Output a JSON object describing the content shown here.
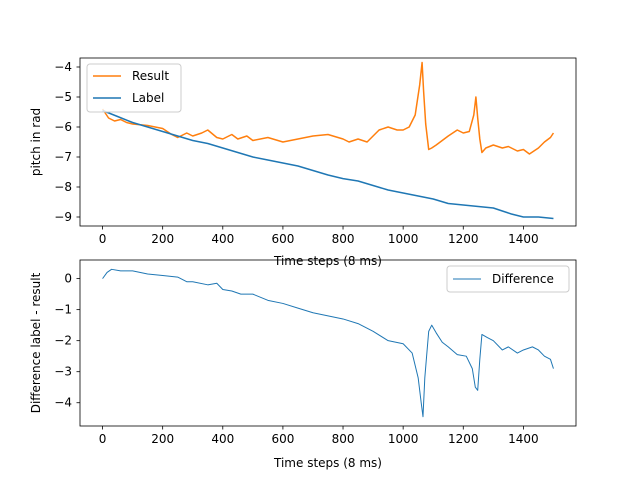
{
  "chart_data": [
    {
      "type": "line",
      "xlabel": "Time steps (8 ms)",
      "ylabel": "pitch in rad",
      "xlim": [
        -75,
        1575
      ],
      "ylim": [
        -9.3,
        -3.7
      ],
      "xticks": [
        "0",
        "200",
        "400",
        "600",
        "800",
        "1000",
        "1200",
        "1400"
      ],
      "xtick_values": [
        0,
        200,
        400,
        600,
        800,
        1000,
        1200,
        1400
      ],
      "yticks": [
        "−4",
        "−5",
        "−6",
        "−7",
        "−8",
        "−9"
      ],
      "ytick_values": [
        -4,
        -5,
        -6,
        -7,
        -8,
        -9
      ],
      "legend_position": "top-left",
      "grid": false,
      "series": [
        {
          "name": "Result",
          "color": "#ff7f0e",
          "x": [
            0,
            20,
            40,
            60,
            80,
            100,
            150,
            200,
            230,
            250,
            280,
            300,
            330,
            350,
            380,
            400,
            430,
            450,
            480,
            500,
            550,
            600,
            650,
            700,
            750,
            800,
            820,
            850,
            880,
            900,
            920,
            950,
            980,
            1000,
            1020,
            1040,
            1055,
            1063,
            1068,
            1075,
            1085,
            1095,
            1110,
            1130,
            1150,
            1180,
            1200,
            1220,
            1235,
            1242,
            1248,
            1255,
            1262,
            1275,
            1300,
            1330,
            1350,
            1380,
            1400,
            1420,
            1450,
            1470,
            1490,
            1500
          ],
          "values": [
            -5.4,
            -5.7,
            -5.8,
            -5.75,
            -5.85,
            -5.9,
            -5.95,
            -6.05,
            -6.25,
            -6.35,
            -6.2,
            -6.3,
            -6.2,
            -6.1,
            -6.35,
            -6.4,
            -6.25,
            -6.4,
            -6.3,
            -6.45,
            -6.35,
            -6.5,
            -6.4,
            -6.3,
            -6.25,
            -6.4,
            -6.5,
            -6.4,
            -6.5,
            -6.3,
            -6.1,
            -6.0,
            -6.1,
            -6.1,
            -6.0,
            -5.6,
            -4.6,
            -3.85,
            -4.8,
            -5.9,
            -6.75,
            -6.7,
            -6.6,
            -6.45,
            -6.3,
            -6.1,
            -6.2,
            -6.15,
            -5.6,
            -5.0,
            -5.7,
            -6.4,
            -6.85,
            -6.7,
            -6.6,
            -6.7,
            -6.65,
            -6.8,
            -6.75,
            -6.9,
            -6.7,
            -6.5,
            -6.35,
            -6.2
          ]
        },
        {
          "name": "Label",
          "color": "#1f77b4",
          "x": [
            0,
            50,
            100,
            150,
            200,
            250,
            300,
            350,
            400,
            450,
            500,
            550,
            600,
            650,
            700,
            750,
            800,
            850,
            900,
            950,
            1000,
            1050,
            1100,
            1150,
            1200,
            1250,
            1300,
            1330,
            1360,
            1400,
            1450,
            1500
          ],
          "values": [
            -5.45,
            -5.65,
            -5.85,
            -6.0,
            -6.15,
            -6.3,
            -6.45,
            -6.55,
            -6.7,
            -6.85,
            -7.0,
            -7.1,
            -7.2,
            -7.3,
            -7.45,
            -7.6,
            -7.72,
            -7.8,
            -7.95,
            -8.1,
            -8.2,
            -8.3,
            -8.4,
            -8.55,
            -8.6,
            -8.65,
            -8.7,
            -8.8,
            -8.9,
            -9.0,
            -9.0,
            -9.05
          ]
        }
      ]
    },
    {
      "type": "line",
      "xlabel": "Time steps (8 ms)",
      "ylabel": "Difference label - result",
      "xlim": [
        -75,
        1575
      ],
      "ylim": [
        -4.75,
        0.6
      ],
      "xticks": [
        "0",
        "200",
        "400",
        "600",
        "800",
        "1000",
        "1200",
        "1400"
      ],
      "xtick_values": [
        0,
        200,
        400,
        600,
        800,
        1000,
        1200,
        1400
      ],
      "yticks": [
        "0",
        "−1",
        "−2",
        "−3",
        "−4"
      ],
      "ytick_values": [
        0,
        -1,
        -2,
        -3,
        -4
      ],
      "legend_position": "top-right",
      "grid": false,
      "series": [
        {
          "name": "Difference",
          "color": "#1f77b4",
          "x": [
            0,
            15,
            30,
            60,
            100,
            150,
            200,
            250,
            280,
            300,
            350,
            380,
            400,
            430,
            460,
            500,
            550,
            600,
            650,
            700,
            750,
            800,
            850,
            900,
            950,
            1000,
            1030,
            1050,
            1060,
            1066,
            1072,
            1078,
            1085,
            1095,
            1110,
            1130,
            1150,
            1180,
            1210,
            1230,
            1240,
            1248,
            1255,
            1262,
            1280,
            1300,
            1330,
            1350,
            1380,
            1400,
            1430,
            1450,
            1470,
            1490,
            1500
          ],
          "values": [
            0.0,
            0.2,
            0.3,
            0.25,
            0.25,
            0.15,
            0.1,
            0.05,
            -0.1,
            -0.1,
            -0.2,
            -0.15,
            -0.35,
            -0.4,
            -0.5,
            -0.5,
            -0.7,
            -0.8,
            -0.95,
            -1.1,
            -1.2,
            -1.3,
            -1.45,
            -1.7,
            -2.0,
            -2.1,
            -2.4,
            -3.2,
            -4.0,
            -4.45,
            -3.2,
            -2.5,
            -1.7,
            -1.5,
            -1.75,
            -2.05,
            -2.2,
            -2.45,
            -2.5,
            -2.9,
            -3.5,
            -3.6,
            -2.6,
            -1.8,
            -1.9,
            -2.0,
            -2.3,
            -2.2,
            -2.4,
            -2.3,
            -2.2,
            -2.3,
            -2.5,
            -2.6,
            -2.9
          ]
        }
      ]
    }
  ]
}
